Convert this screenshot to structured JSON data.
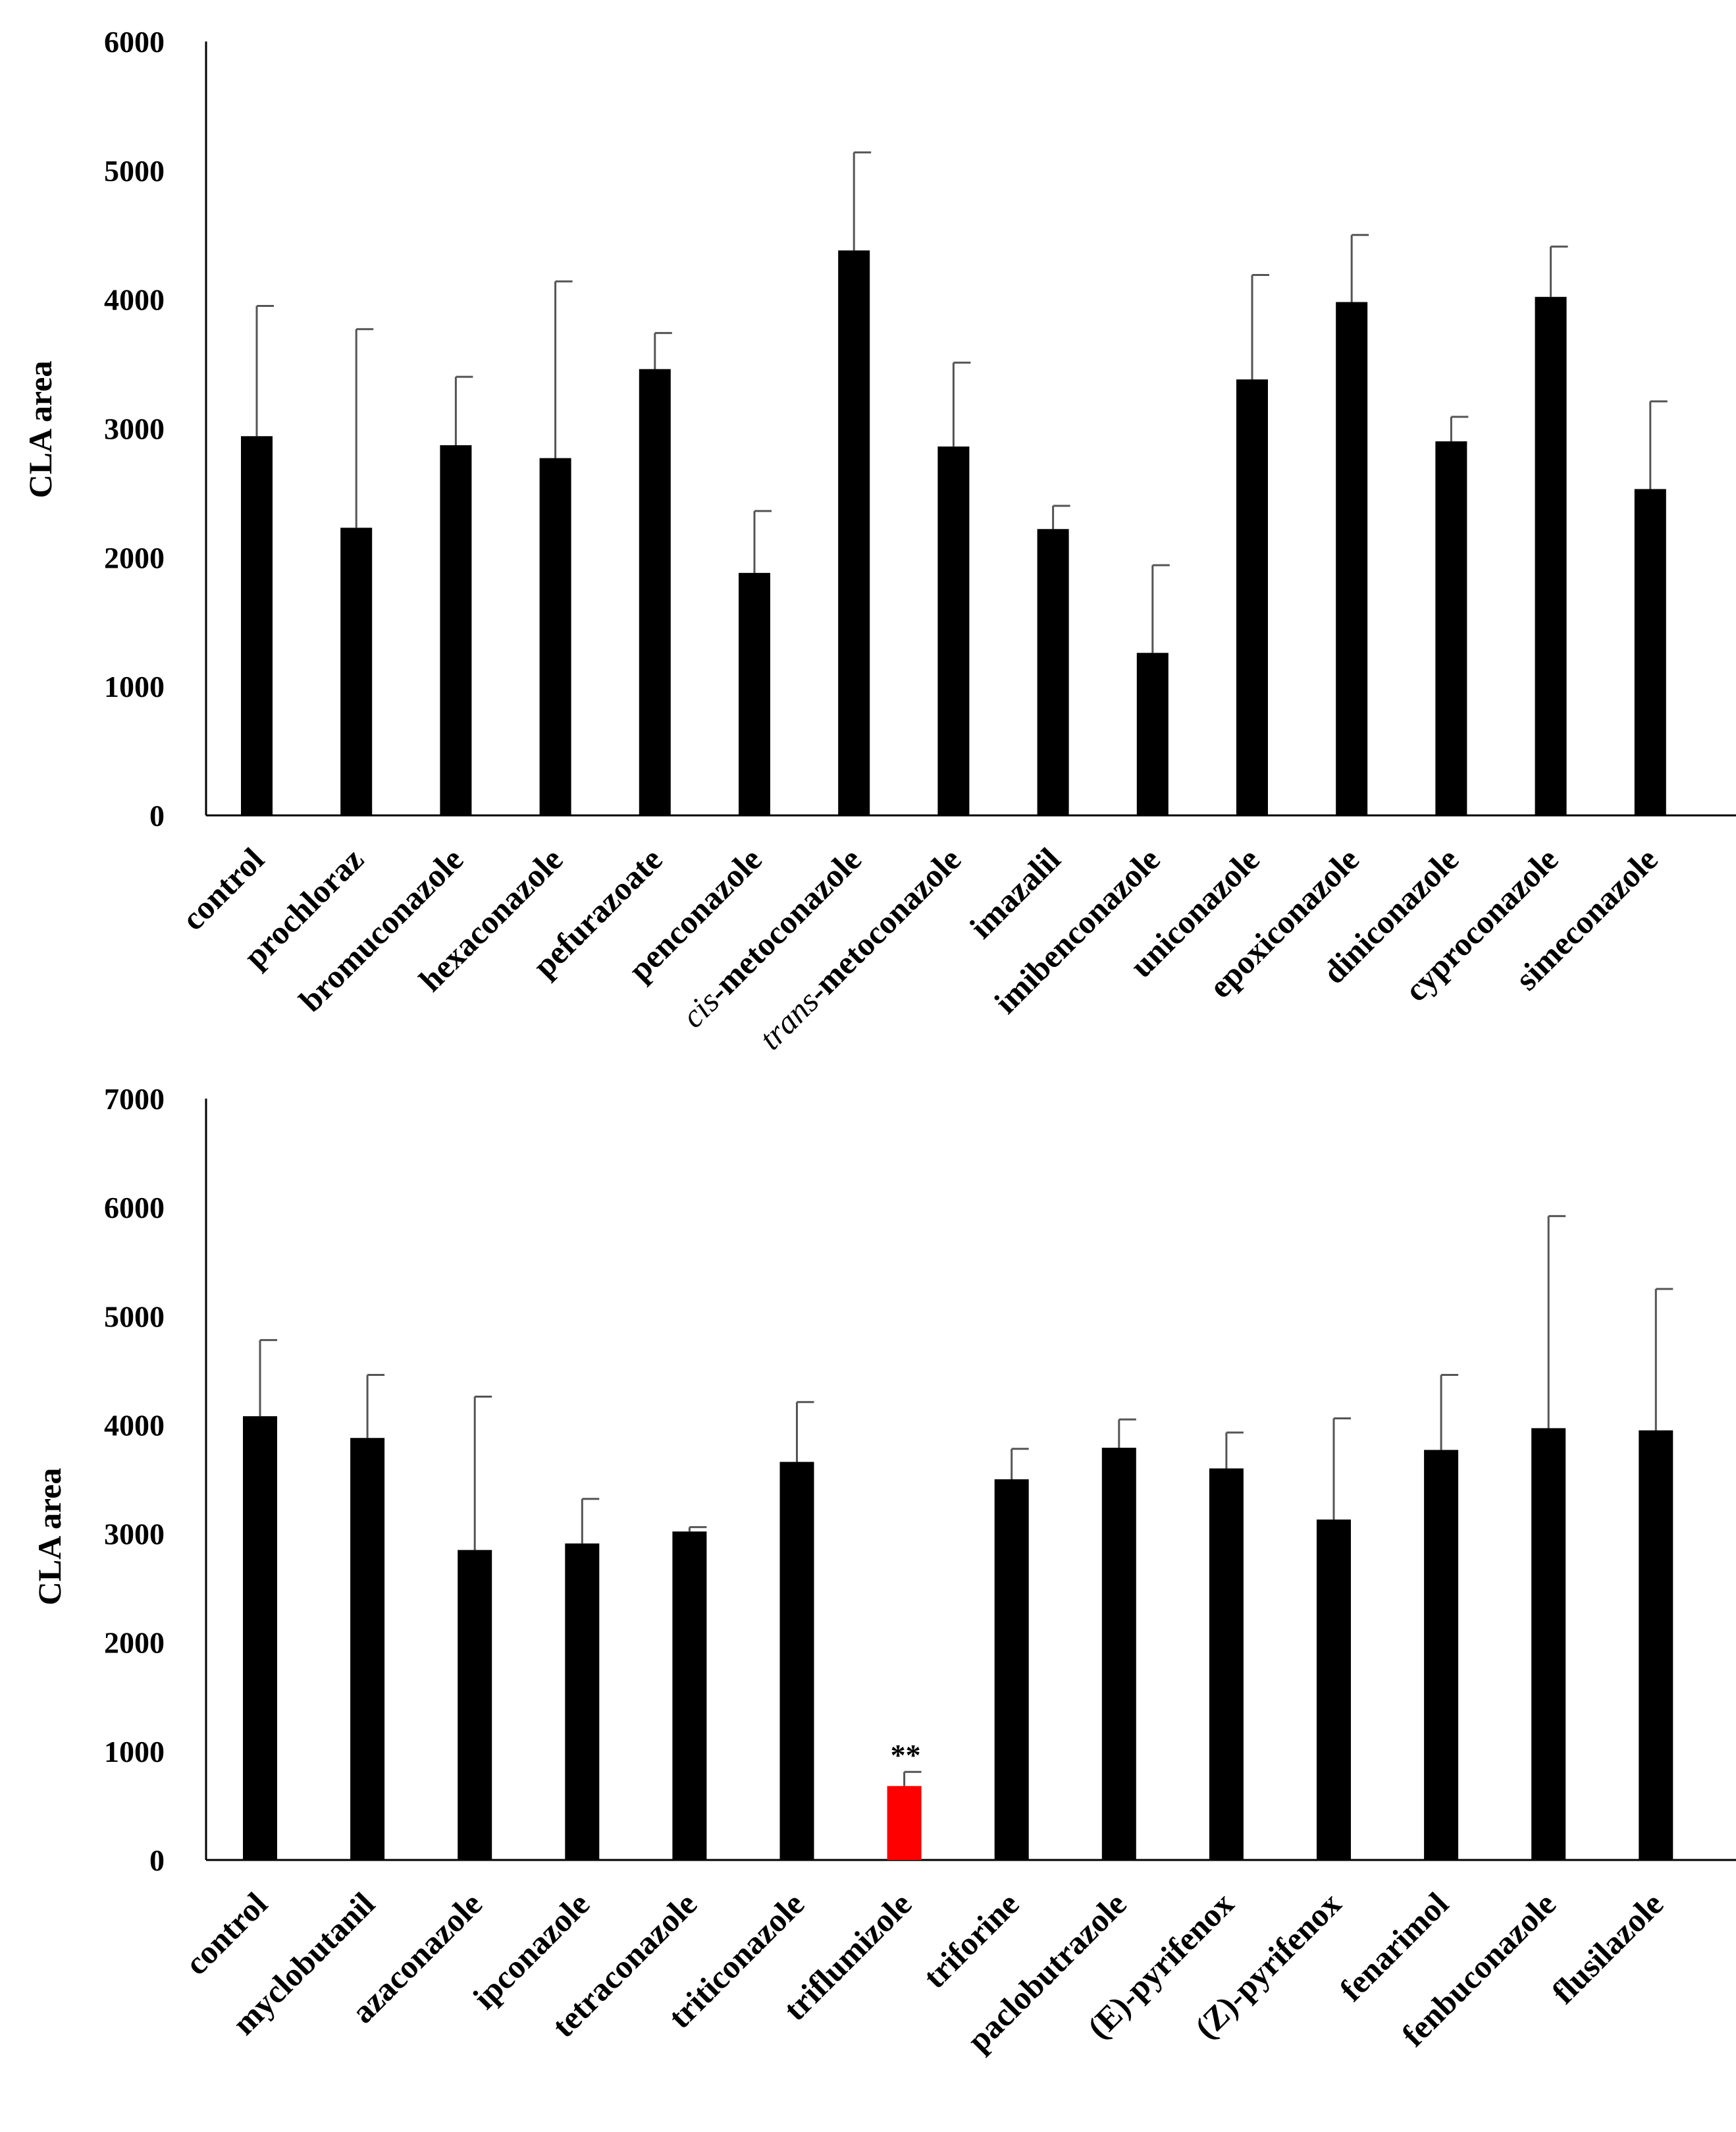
{
  "chart_data": [
    {
      "type": "bar",
      "ylabel": "CLA area",
      "ylim": [
        0,
        6000
      ],
      "yticks": [
        "0",
        "1000",
        "2000",
        "3000",
        "4000",
        "5000",
        "6000"
      ],
      "categories": [
        {
          "label": "control"
        },
        {
          "label": "prochloraz"
        },
        {
          "label": "bromuconazole"
        },
        {
          "label": "hexaconazole"
        },
        {
          "label": "pefurazoate"
        },
        {
          "label": "penconazole"
        },
        {
          "label": "-metoconazole",
          "prefix": "cis"
        },
        {
          "label": "-metoconazole",
          "prefix": "trans"
        },
        {
          "label": "imazalil"
        },
        {
          "label": "imibenconazole"
        },
        {
          "label": "uniconazole"
        },
        {
          "label": "epoxiconazole"
        },
        {
          "label": "diniconazole"
        },
        {
          "label": "cyproconazole"
        },
        {
          "label": "simeconazole"
        }
      ],
      "values": [
        2940,
        2230,
        2870,
        2770,
        3460,
        1880,
        4380,
        2860,
        2220,
        1260,
        3380,
        3980,
        2900,
        4020,
        2530
      ],
      "errors": [
        1010,
        1540,
        530,
        1370,
        280,
        480,
        760,
        650,
        180,
        680,
        810,
        520,
        190,
        390,
        680
      ],
      "colors": [
        "#000000",
        "#000000",
        "#000000",
        "#000000",
        "#000000",
        "#000000",
        "#000000",
        "#000000",
        "#000000",
        "#000000",
        "#000000",
        "#000000",
        "#000000",
        "#000000",
        "#000000"
      ],
      "annotations": [
        "",
        "",
        "",
        "",
        "",
        "",
        "",
        "",
        "",
        "",
        "",
        "",
        "",
        "",
        ""
      ]
    },
    {
      "type": "bar",
      "ylabel": "CLA area",
      "ylim": [
        0,
        7000
      ],
      "yticks": [
        "0",
        "1000",
        "2000",
        "3000",
        "4000",
        "5000",
        "6000",
        "7000"
      ],
      "categories": [
        {
          "label": "control"
        },
        {
          "label": "myclobutanil"
        },
        {
          "label": "azaconazole"
        },
        {
          "label": "ipconazole"
        },
        {
          "label": "tetraconazole"
        },
        {
          "label": "triticonazole"
        },
        {
          "label": "triflumizole"
        },
        {
          "label": "triforine"
        },
        {
          "label": "paclobutrazole"
        },
        {
          "label": "(E)-pyrifenox"
        },
        {
          "label": "(Z)-pyrifenox"
        },
        {
          "label": "fenarimol"
        },
        {
          "label": "fenbuconazole"
        },
        {
          "label": "flusilazole"
        }
      ],
      "values": [
        4080,
        3880,
        2850,
        2910,
        3020,
        3660,
        680,
        3500,
        3790,
        3600,
        3130,
        3770,
        3970,
        3950
      ],
      "errors": [
        700,
        580,
        1410,
        410,
        40,
        550,
        130,
        280,
        260,
        330,
        930,
        690,
        1950,
        1300
      ],
      "colors": [
        "#000000",
        "#000000",
        "#000000",
        "#000000",
        "#000000",
        "#000000",
        "#ff0000",
        "#000000",
        "#000000",
        "#000000",
        "#000000",
        "#000000",
        "#000000",
        "#000000"
      ],
      "annotations": [
        "",
        "",
        "",
        "",
        "",
        "",
        "**",
        "",
        "",
        "",
        "",
        "",
        "",
        ""
      ]
    }
  ]
}
